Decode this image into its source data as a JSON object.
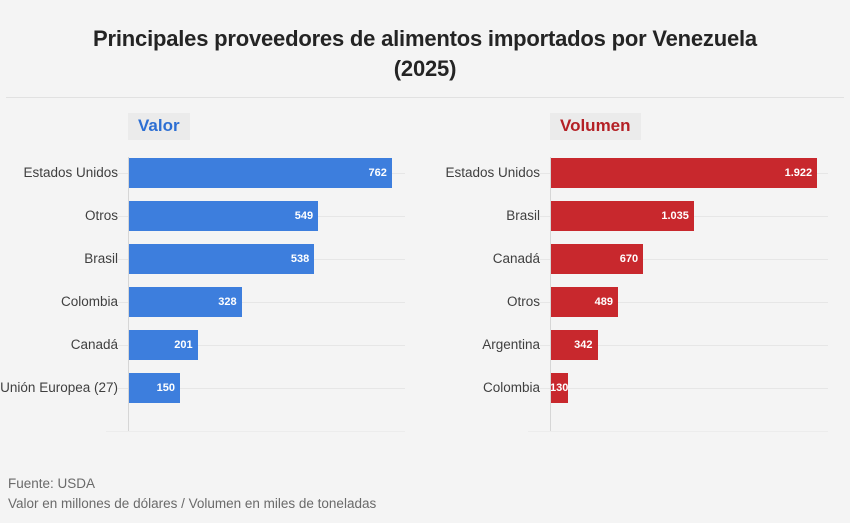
{
  "title": {
    "line1": "Principales proveedores de alimentos importados por Venezuela",
    "line2": "(2025)"
  },
  "chart_data": [
    {
      "type": "bar",
      "orientation": "horizontal",
      "title": "Valor",
      "title_color": "#2d6fd3",
      "bar_color": "#3d7edd",
      "categories": [
        "Estados Unidos",
        "Otros",
        "Brasil",
        "Colombia",
        "Canadá",
        "Unión Europea (27)"
      ],
      "values": [
        762,
        549,
        538,
        328,
        201,
        150
      ],
      "display_values": [
        "762",
        "549",
        "538",
        "328",
        "201",
        "150"
      ],
      "xlim": [
        0,
        800
      ],
      "grid": "row-lines",
      "legend": "none"
    },
    {
      "type": "bar",
      "orientation": "horizontal",
      "title": "Volumen",
      "title_color": "#b42025",
      "bar_color": "#c8282d",
      "categories": [
        "Estados Unidos",
        "Brasil",
        "Canadá",
        "Otros",
        "Argentina",
        "Colombia"
      ],
      "values": [
        1922,
        1035,
        670,
        489,
        342,
        130
      ],
      "display_values": [
        "1.922",
        "1.035",
        "670",
        "489",
        "342",
        "130"
      ],
      "xlim": [
        0,
        2000
      ],
      "grid": "row-lines",
      "legend": "none"
    }
  ],
  "footer": {
    "source": "Fuente: USDA",
    "note": "Valor en millones de dólares / Volumen en miles de toneladas"
  }
}
